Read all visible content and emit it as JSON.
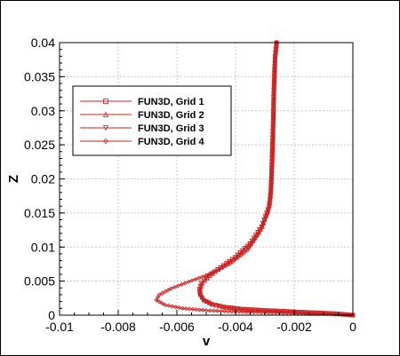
{
  "chart_data": {
    "type": "line",
    "xlabel": "v",
    "ylabel": "Z",
    "xlim": [
      -0.01,
      0
    ],
    "ylim": [
      0,
      0.04
    ],
    "xticks": [
      "-0.01",
      "-0.008",
      "-0.006",
      "-0.004",
      "-0.002",
      "0"
    ],
    "yticks": [
      "0",
      "0.005",
      "0.01",
      "0.015",
      "0.02",
      "0.025",
      "0.03",
      "0.035",
      "0.04"
    ],
    "grid": true,
    "legend_position": "upper-left",
    "line_color": "#cc2222",
    "series": [
      {
        "name": "FUN3D, Grid 1",
        "marker": "square",
        "x": [
          0,
          -0.0005,
          -0.001,
          -0.002,
          -0.003,
          -0.0038,
          -0.0044,
          -0.0048,
          -0.00508,
          -0.0052,
          -0.00522,
          -0.00515,
          -0.0049,
          -0.0045,
          -0.004,
          -0.0035,
          -0.0031,
          -0.00285,
          -0.0028,
          -0.00278,
          -0.00275,
          -0.00272,
          -0.0027,
          -0.00268,
          -0.00265,
          -0.0026
        ],
        "y": [
          0,
          0.0002,
          0.0003,
          0.0005,
          0.0007,
          0.0009,
          0.0012,
          0.0016,
          0.0022,
          0.003,
          0.0038,
          0.0047,
          0.0058,
          0.007,
          0.0085,
          0.0105,
          0.013,
          0.016,
          0.018,
          0.02,
          0.024,
          0.028,
          0.032,
          0.035,
          0.038,
          0.04
        ]
      },
      {
        "name": "FUN3D, Grid 2",
        "marker": "triangle-up",
        "x": [
          0,
          -0.0005,
          -0.001,
          -0.002,
          -0.003,
          -0.0038,
          -0.0044,
          -0.0048,
          -0.00507,
          -0.00519,
          -0.0052,
          -0.00513,
          -0.00488,
          -0.00448,
          -0.00398,
          -0.00348,
          -0.00308,
          -0.00284,
          -0.00279,
          -0.00277,
          -0.00274,
          -0.00271,
          -0.00269,
          -0.00267,
          -0.00264,
          -0.00259
        ],
        "y": [
          0,
          0.0002,
          0.0003,
          0.0005,
          0.0007,
          0.0009,
          0.0012,
          0.0016,
          0.0022,
          0.003,
          0.0038,
          0.0047,
          0.0058,
          0.007,
          0.0085,
          0.0105,
          0.013,
          0.016,
          0.018,
          0.02,
          0.024,
          0.028,
          0.032,
          0.035,
          0.038,
          0.04
        ]
      },
      {
        "name": "FUN3D, Grid 3",
        "marker": "triangle-down",
        "x": [
          0,
          -0.0005,
          -0.001,
          -0.002,
          -0.003,
          -0.0038,
          -0.0044,
          -0.00482,
          -0.0051,
          -0.00523,
          -0.00524,
          -0.00517,
          -0.00492,
          -0.00452,
          -0.00402,
          -0.00352,
          -0.00312,
          -0.00286,
          -0.00281,
          -0.00279,
          -0.00276,
          -0.00273,
          -0.00271,
          -0.00269,
          -0.00266,
          -0.00261
        ],
        "y": [
          0,
          0.0002,
          0.0003,
          0.0005,
          0.0007,
          0.0009,
          0.0012,
          0.0016,
          0.0022,
          0.003,
          0.0038,
          0.0047,
          0.0058,
          0.007,
          0.0085,
          0.0105,
          0.013,
          0.016,
          0.018,
          0.02,
          0.024,
          0.028,
          0.032,
          0.035,
          0.038,
          0.04
        ]
      },
      {
        "name": "FUN3D, Grid 4",
        "marker": "diamond",
        "x": [
          0,
          -0.001,
          -0.002,
          -0.003,
          -0.004,
          -0.005,
          -0.0058,
          -0.0064,
          -0.0067,
          -0.0066,
          -0.0062,
          -0.0056,
          -0.0049,
          -0.0042,
          -0.0036,
          -0.0032,
          -0.0029,
          -0.0028,
          -0.00275,
          -0.00272,
          -0.0027,
          -0.00268,
          -0.00265,
          -0.0026
        ],
        "y": [
          0,
          0.0002,
          0.0003,
          0.0004,
          0.0005,
          0.0007,
          0.001,
          0.0015,
          0.0022,
          0.003,
          0.0039,
          0.0049,
          0.006,
          0.0075,
          0.0095,
          0.012,
          0.015,
          0.018,
          0.021,
          0.025,
          0.029,
          0.033,
          0.037,
          0.04
        ]
      }
    ]
  }
}
